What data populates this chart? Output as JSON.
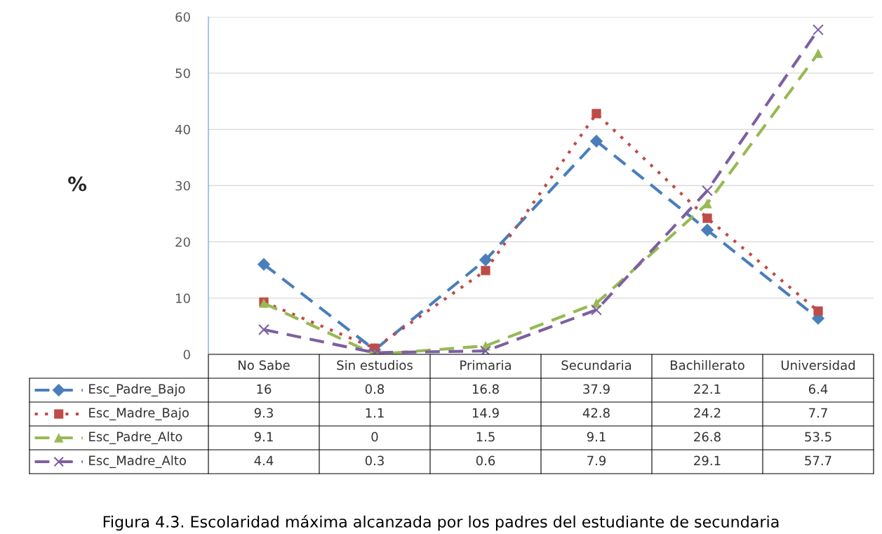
{
  "chart_data": {
    "type": "line",
    "title": "Figura 4.3. Escolaridad máxima alcanzada por los padres del estudiante de secundaria",
    "ylabel": "%",
    "categories": [
      "No Sabe",
      "Sin estudios",
      "Primaria",
      "Secundaria",
      "Bachillerato",
      "Universidad"
    ],
    "series": [
      {
        "name": "Esc_Padre_Bajo",
        "color": "#4a7ebb",
        "marker": "diamond",
        "line_style": "dashed",
        "values": [
          16,
          0.8,
          16.8,
          37.9,
          22.1,
          6.4
        ]
      },
      {
        "name": "Esc_Madre_Bajo",
        "color": "#be4b48",
        "marker": "square",
        "line_style": "dotted",
        "values": [
          9.3,
          1.1,
          14.9,
          42.8,
          24.2,
          7.7
        ]
      },
      {
        "name": "Esc_Padre_Alto",
        "color": "#98b954",
        "marker": "triangle",
        "line_style": "dashed",
        "values": [
          9.1,
          0,
          1.5,
          9.1,
          26.8,
          53.5
        ]
      },
      {
        "name": "Esc_Madre_Alto",
        "color": "#7d60a0",
        "marker": "cross",
        "line_style": "dashed",
        "values": [
          4.4,
          0.3,
          0.6,
          7.9,
          29.1,
          57.7
        ]
      }
    ],
    "ylim": [
      0,
      60
    ],
    "yticks": [
      0,
      10,
      20,
      30,
      40,
      50,
      60
    ],
    "grid": "y",
    "legend": "bottom",
    "data_labels": true
  }
}
